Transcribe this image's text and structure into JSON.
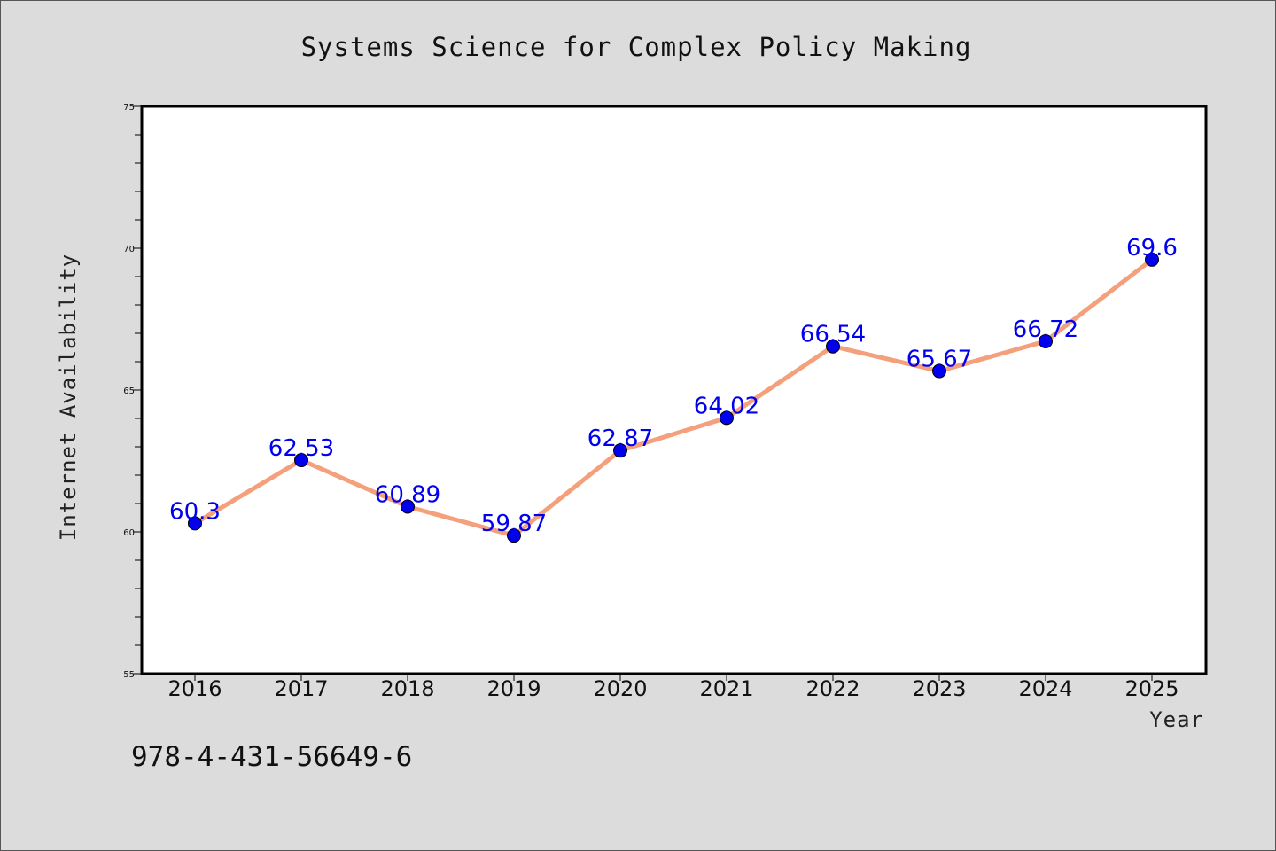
{
  "chart_data": {
    "type": "line",
    "title": "Systems Science for Complex Policy Making",
    "xlabel": "Year",
    "ylabel": "Internet Availability",
    "categories": [
      "2016",
      "2017",
      "2018",
      "2019",
      "2020",
      "2021",
      "2022",
      "2023",
      "2024",
      "2025"
    ],
    "series": [
      {
        "values": [
          60.3,
          62.53,
          60.89,
          59.87,
          62.87,
          64.02,
          66.54,
          65.67,
          66.72,
          69.6
        ],
        "data_labels": [
          "60.3",
          "62.53",
          "60.89",
          "59.87",
          "62.87",
          "64.02",
          "66.54",
          "65.67",
          "66.72",
          "69.6"
        ],
        "line_color": "#f4a07c",
        "marker_color": "#0000ee"
      }
    ],
    "ylim": [
      55,
      75
    ],
    "y_ticks": [
      "55",
      "60",
      "65",
      "70",
      "75"
    ],
    "grid": false
  },
  "footer": {
    "isbn": "978-4-431-56649-6"
  },
  "colors": {
    "background": "#dcdcdc",
    "plot_background": "#ffffff",
    "label_color": "#0000ee"
  }
}
